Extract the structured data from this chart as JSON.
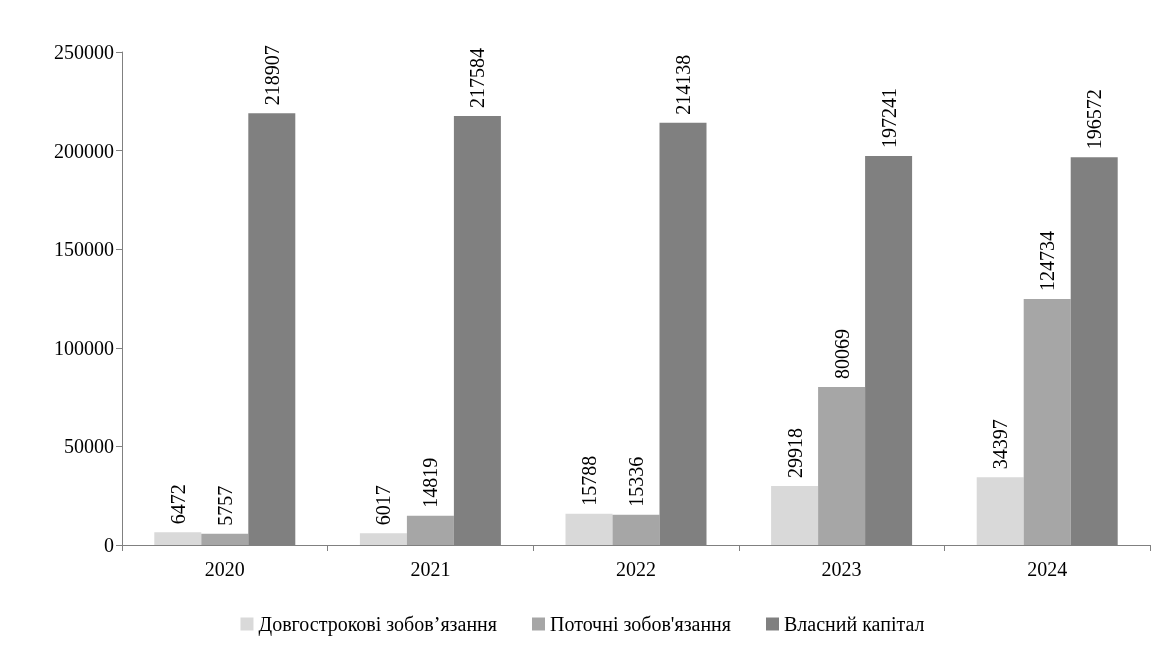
{
  "chart_data": {
    "type": "bar",
    "categories": [
      "2020",
      "2021",
      "2022",
      "2023",
      "2024"
    ],
    "series": [
      {
        "name": "Довгострокові зобов’язання",
        "color": "#d9d9d9",
        "values": [
          6472,
          6017,
          15788,
          29918,
          34397
        ]
      },
      {
        "name": "Поточні зобов'язання",
        "color": "#a6a6a6",
        "values": [
          5757,
          14819,
          15336,
          80069,
          124734
        ]
      },
      {
        "name": "Власний капітал",
        "color": "#808080",
        "values": [
          218907,
          217584,
          214138,
          197241,
          196572
        ]
      }
    ],
    "ylim": [
      0,
      250000
    ],
    "yticks": [
      0,
      50000,
      100000,
      150000,
      200000,
      250000
    ],
    "grid": false,
    "legend": "bottom",
    "data_labels": true
  }
}
